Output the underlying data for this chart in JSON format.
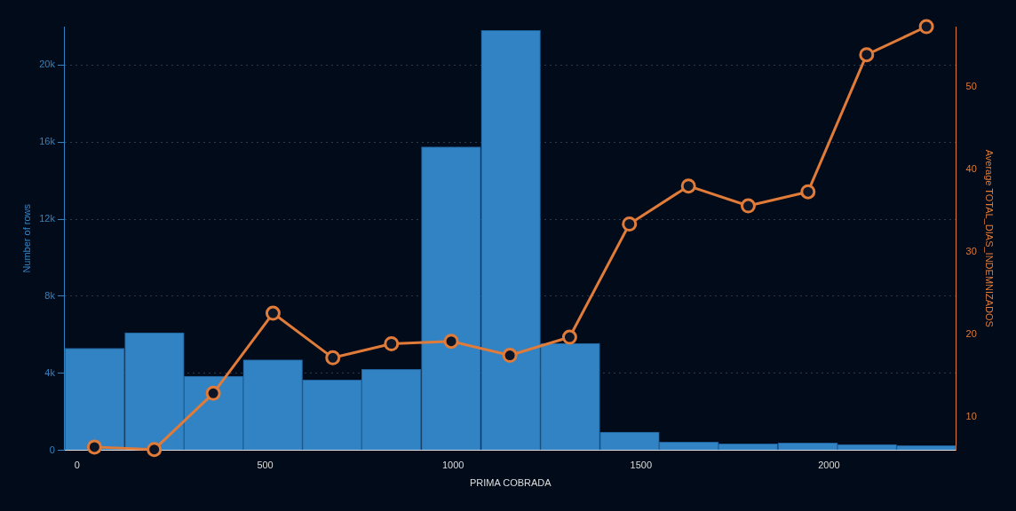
{
  "chart_data": {
    "type": "histogram",
    "xlabel": "PRIMA COBRADA",
    "ylabel": "Number of rows",
    "y2label": "Average TOTAL_DIAS_INDEMNIZADOS",
    "bins": [
      -33,
      126,
      285,
      441,
      600,
      756,
      915,
      1074,
      1233,
      1390,
      1549,
      1705,
      1864,
      2023,
      2179,
      2338
    ],
    "values": [
      5300,
      6100,
      3850,
      4700,
      3650,
      4200,
      15750,
      21800,
      5550,
      950,
      430,
      330,
      380,
      300,
      240
    ],
    "color": "#3283c3",
    "series": [
      {
        "type": "line",
        "axis": "y2",
        "color": "#e07b39",
        "x": [
          46,
          205,
          362,
          521,
          680,
          836,
          995,
          1151,
          1310,
          1469,
          1626,
          1785,
          1944,
          2100,
          2259
        ],
        "values": [
          6.4,
          6.1,
          12.9,
          22.6,
          17.2,
          18.9,
          19.2,
          17.5,
          19.7,
          33.4,
          38.0,
          35.6,
          37.3,
          53.9,
          57.3
        ]
      }
    ],
    "marker": "circle",
    "grid": "y",
    "legend": false,
    "xlim": [
      -33,
      2338
    ],
    "xticks": [
      0,
      500,
      1000,
      1500,
      2000
    ],
    "ylim": [
      0,
      22000
    ],
    "yticks": [
      {
        "value": 0,
        "label": "0"
      },
      {
        "value": 4000,
        "label": "4k"
      },
      {
        "value": 8000,
        "label": "8k"
      },
      {
        "value": 12000,
        "label": "12k"
      },
      {
        "value": 16000,
        "label": "16k"
      },
      {
        "value": 20000,
        "label": "20k"
      }
    ],
    "y2lim": [
      6,
      57.3
    ],
    "y2ticks": [
      10,
      20,
      30,
      40,
      50
    ]
  }
}
